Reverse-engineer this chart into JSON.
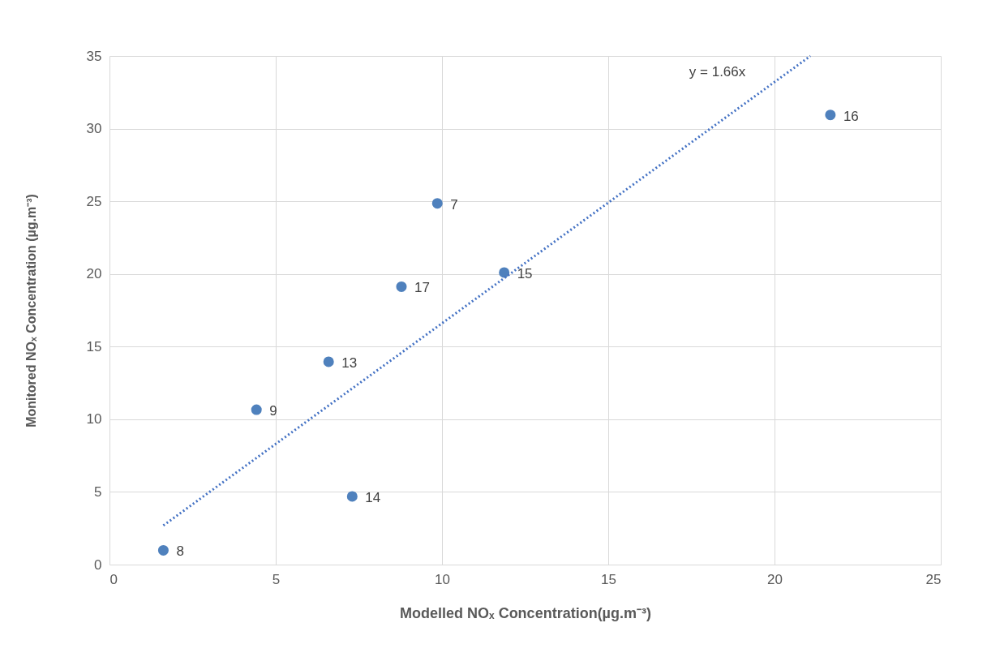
{
  "chart_data": {
    "type": "scatter",
    "xlabel": "Modelled NOₓ Concentration(µg.m⁻³)",
    "ylabel": "Monitored NOₓ Concentration (µg.m⁻³)",
    "xlim": [
      0,
      25
    ],
    "xticks": [
      0,
      5,
      10,
      15,
      20,
      25
    ],
    "ylim": [
      0,
      35
    ],
    "yticks": [
      0,
      5,
      10,
      15,
      20,
      25,
      30,
      35
    ],
    "grid": true,
    "marker": "circle",
    "series": [
      {
        "color": "#4f81bd",
        "x": [
          1.62,
          4.42,
          6.59,
          7.3,
          8.78,
          9.86,
          11.87,
          21.68
        ],
        "values": [
          0.98,
          10.66,
          13.96,
          4.69,
          19.12,
          24.86,
          20.1,
          30.94
        ]
      },
      {
        "type": "line",
        "color": "#4472c4",
        "line_style": "dotted",
        "marker": "none",
        "x": [
          1.62,
          21.08
        ],
        "values": [
          2.69,
          35
        ]
      }
    ],
    "annotations": [
      {
        "text": "8",
        "x": 1.62,
        "y": 0.98
      },
      {
        "text": "9",
        "x": 4.42,
        "y": 10.66
      },
      {
        "text": "13",
        "x": 6.59,
        "y": 13.96
      },
      {
        "text": "14",
        "x": 7.3,
        "y": 4.69
      },
      {
        "text": "17",
        "x": 8.78,
        "y": 19.12
      },
      {
        "text": "7",
        "x": 9.86,
        "y": 24.86
      },
      {
        "text": "15",
        "x": 11.87,
        "y": 20.1
      },
      {
        "text": "16",
        "x": 21.68,
        "y": 30.94
      },
      "y = 1.66x"
    ]
  }
}
